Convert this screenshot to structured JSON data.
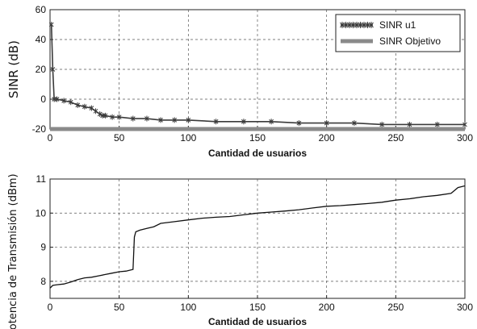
{
  "chart_data": [
    {
      "type": "line",
      "xlabel": "Cantidad de usuarios",
      "ylabel": "SINR (dB)",
      "xlim": [
        0,
        300
      ],
      "ylim": [
        -20,
        60
      ],
      "xticks": [
        0,
        50,
        100,
        150,
        200,
        250,
        300
      ],
      "yticks": [
        -20,
        0,
        20,
        40,
        60
      ],
      "grid": true,
      "legend_position": "top-right",
      "series": [
        {
          "name": "SINR u1",
          "color": "#3a3a3a",
          "marker": "star",
          "x": [
            1,
            2,
            3,
            5,
            10,
            15,
            20,
            25,
            30,
            33,
            36,
            38,
            40,
            45,
            50,
            60,
            70,
            80,
            90,
            100,
            120,
            140,
            160,
            180,
            200,
            220,
            240,
            260,
            280,
            300
          ],
          "y": [
            50,
            20,
            0,
            0,
            -1,
            -2,
            -4,
            -5,
            -6,
            -8,
            -10,
            -11,
            -11,
            -12,
            -12,
            -13,
            -13,
            -14,
            -14,
            -14,
            -15,
            -15,
            -15,
            -16,
            -16,
            -16,
            -17,
            -17,
            -17,
            -17
          ]
        },
        {
          "name": "SINR Objetivo",
          "color": "#8a8a8a",
          "x": [
            0,
            300
          ],
          "y": [
            -20,
            -20
          ]
        }
      ]
    },
    {
      "type": "line",
      "xlabel": "Cantidad de usuarios",
      "ylabel": "Potencia de Transmisión (dBm)",
      "xlim": [
        0,
        300
      ],
      "ylim": [
        7.5,
        11
      ],
      "xticks": [
        0,
        50,
        100,
        150,
        200,
        250,
        300
      ],
      "yticks": [
        8,
        9,
        10,
        11
      ],
      "grid": true,
      "series": [
        {
          "color": "#111111",
          "x": [
            0,
            2,
            5,
            10,
            15,
            20,
            25,
            30,
            35,
            40,
            45,
            50,
            55,
            60,
            61,
            62,
            65,
            70,
            75,
            80,
            90,
            100,
            110,
            120,
            130,
            140,
            150,
            160,
            170,
            180,
            190,
            200,
            210,
            220,
            230,
            240,
            250,
            260,
            270,
            280,
            290,
            295,
            300
          ],
          "y": [
            7.8,
            7.88,
            7.9,
            7.92,
            7.98,
            8.05,
            8.1,
            8.12,
            8.16,
            8.2,
            8.24,
            8.28,
            8.3,
            8.35,
            9.3,
            9.45,
            9.5,
            9.55,
            9.6,
            9.7,
            9.75,
            9.8,
            9.85,
            9.88,
            9.9,
            9.95,
            10.0,
            10.03,
            10.06,
            10.1,
            10.15,
            10.2,
            10.22,
            10.25,
            10.28,
            10.32,
            10.38,
            10.42,
            10.48,
            10.52,
            10.58,
            10.75,
            10.8
          ]
        }
      ]
    }
  ]
}
